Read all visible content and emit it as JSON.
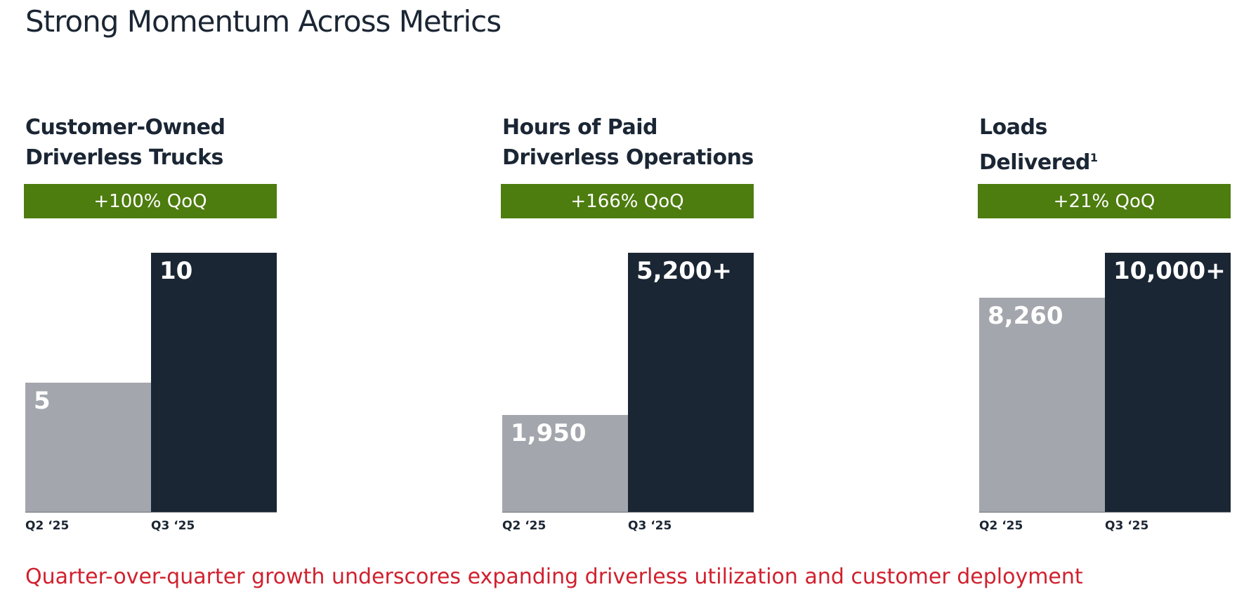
{
  "title": "Strong Momentum Across Metrics",
  "chart_data": [
    {
      "type": "bar",
      "title": "Customer-Owned\nDriverless Trucks",
      "annotation": "+100% QoQ",
      "categories": [
        "Q2 ‘25",
        "Q3 ‘25"
      ],
      "values": [
        5,
        10
      ],
      "colors": [
        "#a3a7ad",
        "#1b2634"
      ],
      "ylim": [
        0,
        10
      ]
    },
    {
      "type": "bar",
      "title": "Hours of Paid\nDriverless Operations",
      "annotation": "+166% QoQ",
      "categories": [
        "Q2 ‘25",
        "Q3 ‘25"
      ],
      "values": [
        1950,
        5200
      ],
      "value_labels": [
        "1,950",
        "5,200+"
      ],
      "colors": [
        "#a3a7ad",
        "#1b2634"
      ],
      "ylim": [
        0,
        5200
      ]
    },
    {
      "type": "bar",
      "title": "Loads\nDelivered",
      "title_footnote": "1",
      "annotation": "+21% QoQ",
      "categories": [
        "Q2 ‘25",
        "Q3 ‘25"
      ],
      "values": [
        8260,
        10000
      ],
      "value_labels": [
        "8,260",
        "10,000+"
      ],
      "colors": [
        "#a3a7ad",
        "#1b2634"
      ],
      "ylim": [
        0,
        10000
      ]
    }
  ],
  "footer": "Quarter-over-quarter growth underscores expanding driverless utilization and customer deployment"
}
